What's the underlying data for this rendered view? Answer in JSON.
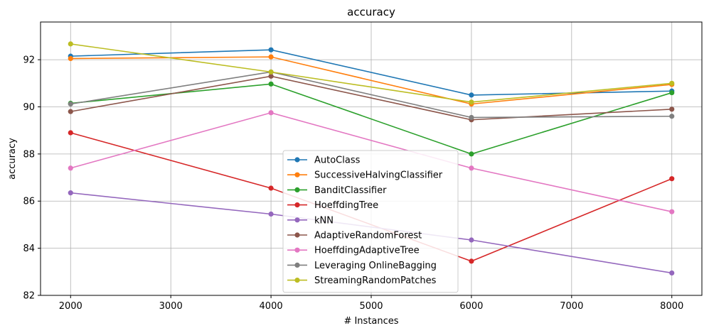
{
  "chart_data": {
    "type": "line",
    "title": "accuracy",
    "xlabel": "# Instances",
    "ylabel": "accuracy",
    "xlim": [
      1700,
      8300
    ],
    "ylim": [
      82,
      93.6
    ],
    "xticks": [
      2000,
      3000,
      4000,
      5000,
      6000,
      7000,
      8000
    ],
    "yticks": [
      82,
      84,
      86,
      88,
      90,
      92
    ],
    "grid": true,
    "legend_position": "lower-center",
    "x": [
      2000,
      4000,
      6000,
      8000
    ],
    "series": [
      {
        "name": "AutoClass",
        "color": "#1f77b4",
        "values": [
          92.15,
          92.42,
          90.5,
          90.67
        ]
      },
      {
        "name": "SuccessiveHalvingClassifier",
        "color": "#ff7f0e",
        "values": [
          92.05,
          92.12,
          90.12,
          90.95
        ]
      },
      {
        "name": "BanditClassifier",
        "color": "#2ca02c",
        "values": [
          90.15,
          90.97,
          88.0,
          90.6
        ]
      },
      {
        "name": "HoeffdingTree",
        "color": "#d62728",
        "values": [
          88.9,
          86.55,
          83.45,
          86.95
        ]
      },
      {
        "name": "kNN",
        "color": "#9467bd",
        "values": [
          86.35,
          85.45,
          84.35,
          82.95
        ]
      },
      {
        "name": "AdaptiveRandomForest",
        "color": "#8c564b",
        "values": [
          89.8,
          91.3,
          89.45,
          89.9
        ]
      },
      {
        "name": "HoeffdingAdaptiveTree",
        "color": "#e377c2",
        "values": [
          87.4,
          89.75,
          87.4,
          85.55
        ]
      },
      {
        "name": "Leveraging OnlineBagging",
        "color": "#7f7f7f",
        "values": [
          90.12,
          91.48,
          89.55,
          89.6
        ]
      },
      {
        "name": "StreamingRandomPatches",
        "color": "#bcbd22",
        "values": [
          92.67,
          91.48,
          90.2,
          91.0
        ]
      }
    ]
  }
}
